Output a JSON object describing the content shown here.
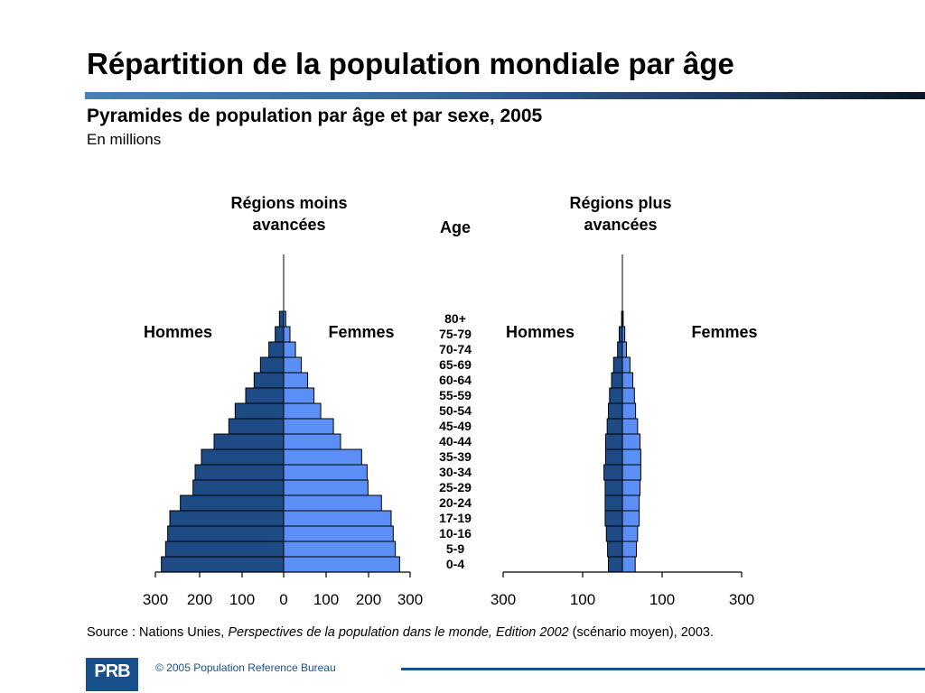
{
  "slide": {
    "title": "Répartition de la population mondiale par âge",
    "subtitle": "Pyramides de population par âge et par sexe, 2005",
    "unit": "En millions",
    "source_prefix": "Source : Nations Unies, ",
    "source_italic": "Perspectives de la population dans le monde, Edition 2002",
    "source_suffix": " (scénario moyen), 2003.",
    "copyright": "© 2005 Population Reference Bureau",
    "logo_text": "PRB"
  },
  "colors": {
    "men": "#1e4a85",
    "women": "#5b8ff5",
    "bar_stroke": "#000000",
    "accent": "#17508a"
  },
  "chart_data": [
    {
      "type": "bar",
      "orientation": "horizontal-pyramid",
      "title": "Régions moins avancées",
      "age_axis_label": "Age",
      "categories": [
        "0-4",
        "5-9",
        "10-16",
        "17-19",
        "20-24",
        "25-29",
        "30-34",
        "35-39",
        "40-44",
        "45-49",
        "50-54",
        "55-59",
        "60-64",
        "65-69",
        "70-74",
        "75-79",
        "80+"
      ],
      "series": [
        {
          "name": "Hommes",
          "values": [
            290,
            280,
            275,
            270,
            245,
            215,
            210,
            195,
            165,
            130,
            115,
            90,
            70,
            55,
            35,
            20,
            10
          ]
        },
        {
          "name": "Femmes",
          "values": [
            275,
            265,
            260,
            255,
            232,
            200,
            198,
            185,
            135,
            118,
            88,
            72,
            57,
            42,
            28,
            15,
            5
          ]
        }
      ],
      "x_ticks": [
        "300",
        "200",
        "100",
        "0",
        "100",
        "200",
        "300"
      ],
      "xlim": [
        -300,
        300
      ]
    },
    {
      "type": "bar",
      "orientation": "horizontal-pyramid",
      "title": "Régions plus avancées",
      "categories": [
        "0-4",
        "5-9",
        "10-16",
        "17-19",
        "20-24",
        "25-29",
        "30-34",
        "35-39",
        "40-44",
        "45-49",
        "50-54",
        "55-59",
        "60-64",
        "65-69",
        "70-74",
        "75-79",
        "80+"
      ],
      "series": [
        {
          "name": "Hommes",
          "values": [
            35,
            37,
            40,
            43,
            43,
            43,
            46,
            42,
            42,
            38,
            35,
            32,
            27,
            22,
            12,
            8,
            2
          ]
        },
        {
          "name": "Femmes",
          "values": [
            32,
            35,
            38,
            42,
            42,
            44,
            46,
            46,
            44,
            38,
            33,
            30,
            26,
            19,
            10,
            6,
            2
          ]
        }
      ],
      "x_ticks": [
        "300",
        "100",
        "100",
        "300"
      ],
      "xlim": [
        -300,
        300
      ]
    }
  ],
  "labels": {
    "men": "Hommes",
    "women": "Femmes"
  }
}
